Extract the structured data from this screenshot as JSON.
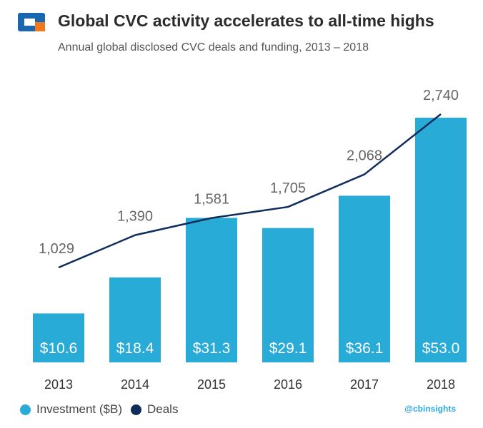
{
  "header": {
    "title": "Global CVC activity accelerates to all-time highs",
    "subtitle": "Annual global disclosed CVC deals and funding, 2013 – 2018"
  },
  "chart_data": {
    "type": "bar",
    "categories": [
      "2013",
      "2014",
      "2015",
      "2016",
      "2017",
      "2018"
    ],
    "series": [
      {
        "name": "Investment ($B)",
        "kind": "bar",
        "color": "#29abd8",
        "values": [
          10.6,
          18.4,
          31.3,
          29.1,
          36.1,
          53.0
        ],
        "labels": [
          "$10.6",
          "$18.4",
          "$31.3",
          "$29.1",
          "$36.1",
          "$53.0"
        ]
      },
      {
        "name": "Deals",
        "kind": "line",
        "color": "#0f2d5c",
        "values": [
          1029,
          1390,
          1581,
          1705,
          2068,
          2740
        ],
        "labels": [
          "1,029",
          "1,390",
          "1,581",
          "1,705",
          "2,068",
          "2,740"
        ]
      }
    ],
    "bar_ylim": [
      0,
      60
    ],
    "line_ylim": [
      0,
      3000
    ],
    "legend_position": "bottom-left"
  },
  "legend": {
    "investment": "Investment ($B)",
    "deals": "Deals"
  },
  "brand": "@cbinsights",
  "colors": {
    "bar": "#29abd8",
    "line": "#0f2d5c",
    "logo_blue": "#1a66b0",
    "logo_orange": "#f0791e"
  }
}
